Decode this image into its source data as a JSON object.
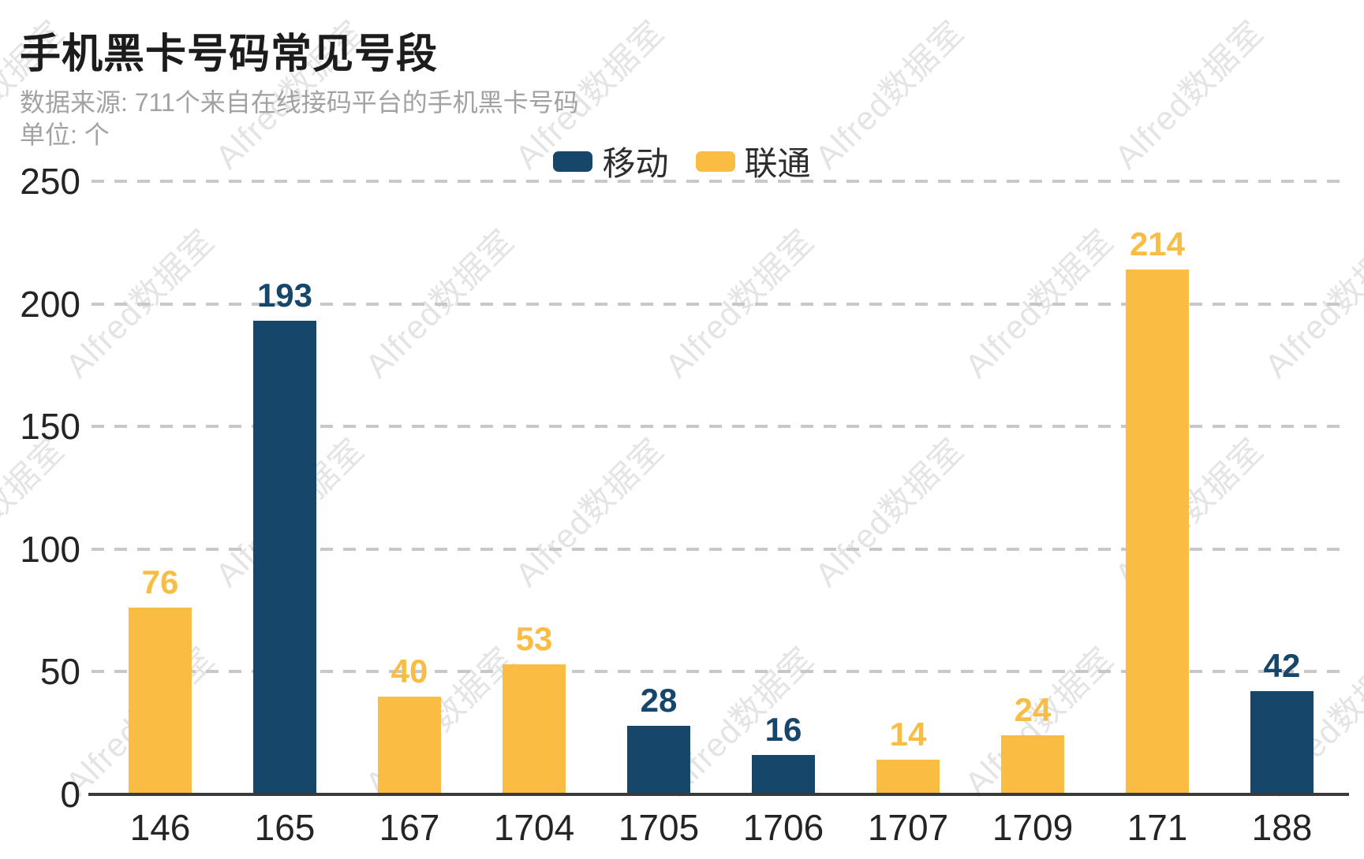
{
  "title": "手机黑卡号码常见号段",
  "subtitle": "数据来源: 711个来自在线接码平台的手机黑卡号码",
  "unit_label": "单位: 个",
  "watermark_text": "Alfred数据室",
  "colors": {
    "mobile_blue": "#17466B",
    "unicom_yellow": "#F9BD43",
    "axis": "#3a3a3a",
    "grid": "#c8c8c8",
    "subtitle_gray": "#a2a2a2"
  },
  "chart_data": {
    "type": "bar",
    "title": "手机黑卡号码常见号段",
    "source_note": "数据来源: 711个来自在线接码平台的手机黑卡号码",
    "unit": "个",
    "categories": [
      "146",
      "165",
      "167",
      "1704",
      "1705",
      "1706",
      "1707",
      "1709",
      "171",
      "188"
    ],
    "series": [
      {
        "name": "移动",
        "color": "#17466B",
        "values": [
          null,
          193,
          null,
          null,
          28,
          16,
          null,
          null,
          null,
          42
        ]
      },
      {
        "name": "联通",
        "color": "#F9BD43",
        "values": [
          76,
          null,
          40,
          53,
          null,
          null,
          14,
          24,
          214,
          null
        ]
      }
    ],
    "xlabel": "",
    "ylabel": "个",
    "ylim": [
      0,
      250
    ],
    "yticks": [
      0,
      50,
      100,
      150,
      200,
      250
    ],
    "grid": "horizontal-dashed",
    "legend_position": "top-center",
    "bar_value_labels": true
  }
}
